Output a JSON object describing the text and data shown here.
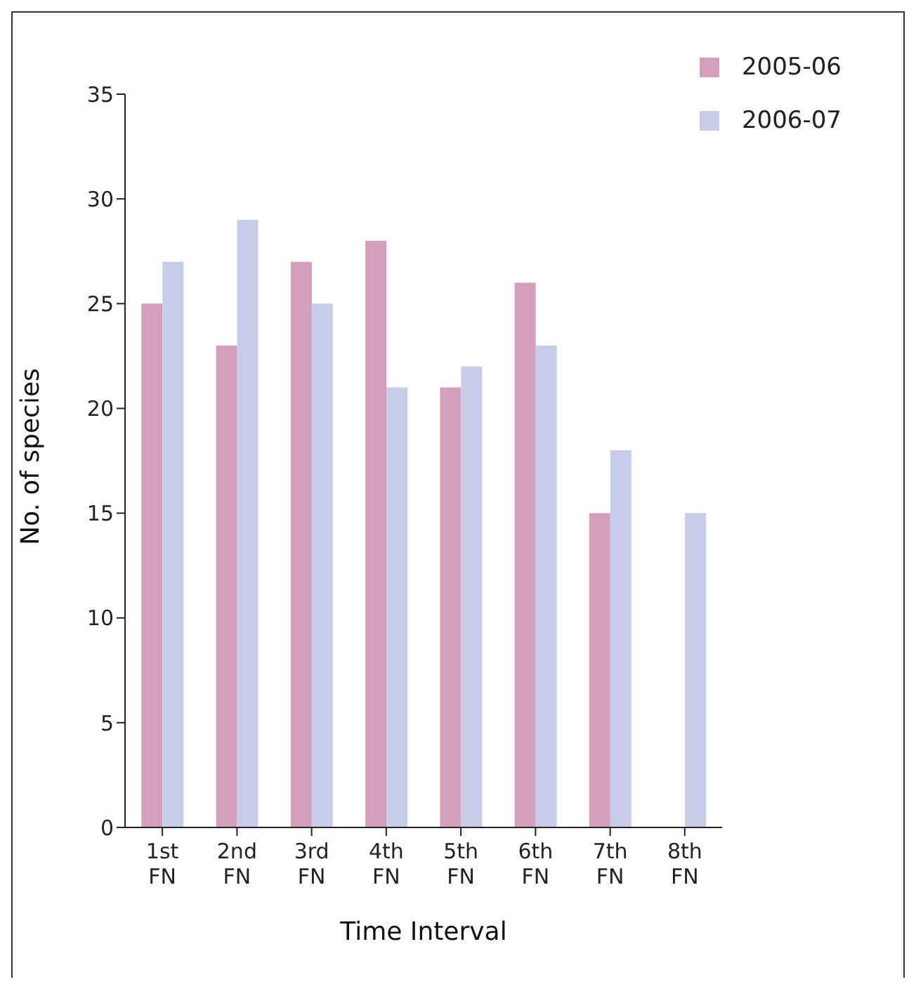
{
  "chart_data": {
    "type": "bar",
    "xlabel": "Time Interval",
    "ylabel": "No. of species",
    "categories": [
      "1st FN",
      "2nd FN",
      "3rd FN",
      "4th FN",
      "5th FN",
      "6th FN",
      "7th FN",
      "8th FN"
    ],
    "series": [
      {
        "name": "2005-06",
        "color": "#d49fbb",
        "values": [
          25,
          23,
          27,
          28,
          21,
          26,
          15,
          null
        ]
      },
      {
        "name": "2006-07",
        "color": "#c7cce8",
        "values": [
          27,
          29,
          25,
          21,
          22,
          23,
          18,
          15
        ]
      }
    ],
    "ylim": [
      0,
      35
    ],
    "yticks": [
      0,
      5,
      10,
      15,
      20,
      25,
      30,
      35
    ],
    "grid": false,
    "legend": "top right"
  }
}
